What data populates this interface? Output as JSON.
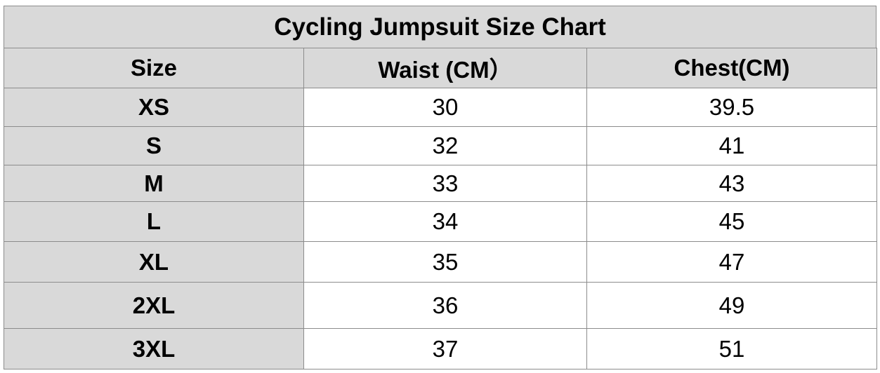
{
  "header": {
    "title": "Cycling Jumpsuit Size Chart"
  },
  "table": {
    "columns": [
      "Size",
      "Waist (CM）",
      "Chest(CM)"
    ],
    "rows": [
      [
        "XS",
        "30",
        "39.5"
      ],
      [
        "S",
        "32",
        "41"
      ],
      [
        "M",
        "33",
        "43"
      ],
      [
        "L",
        "34",
        "45"
      ],
      [
        "XL",
        "35",
        "47"
      ],
      [
        "2XL",
        "36",
        "49"
      ],
      [
        "3XL",
        "37",
        "51"
      ]
    ]
  }
}
